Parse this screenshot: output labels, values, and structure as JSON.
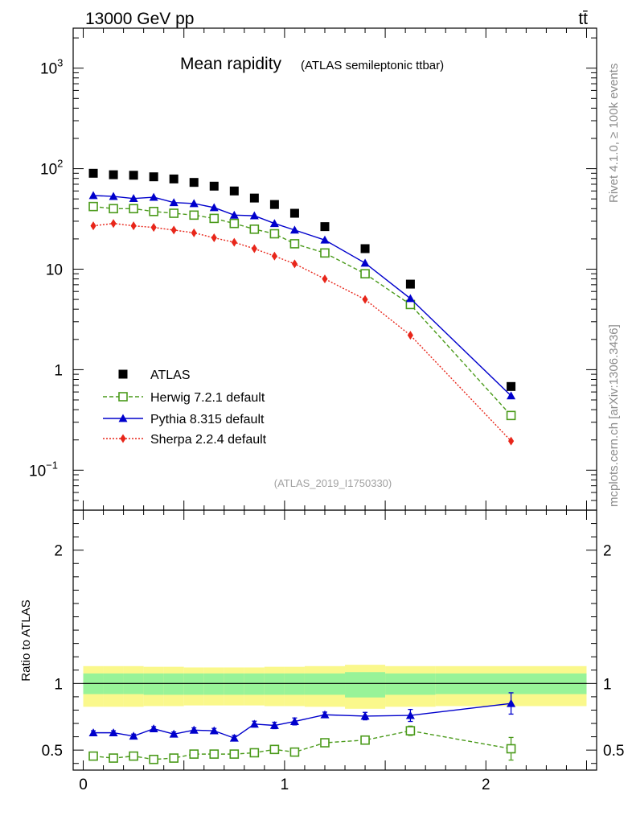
{
  "header": {
    "left": "13000 GeV pp",
    "right": "tt̄",
    "side_top": "Rivet 4.1.0, ≥ 100k events",
    "side_bottom": "mcplots.cern.ch [arXiv:1306.3436]"
  },
  "chart_data": [
    {
      "type": "scatter",
      "panel": "main",
      "title": "Mean rapidity",
      "subtitle": "(ATLAS semileptonic ttbar)",
      "watermark": "(ATLAS_2019_I1750330)",
      "yscale": "log",
      "ylim": [
        0.04,
        2500
      ],
      "xlim": [
        -0.05,
        2.55
      ],
      "yticks": [
        {
          "v": 0.1,
          "base": "10",
          "exp": "−1"
        },
        {
          "v": 1,
          "base": "1",
          "exp": ""
        },
        {
          "v": 10,
          "base": "10",
          "exp": ""
        },
        {
          "v": 100,
          "base": "10",
          "exp": "2"
        },
        {
          "v": 1000,
          "base": "10",
          "exp": "3"
        }
      ],
      "x": [
        0.05,
        0.15,
        0.25,
        0.35,
        0.45,
        0.55,
        0.65,
        0.75,
        0.85,
        0.95,
        1.05,
        1.2,
        1.4,
        1.625,
        2.125
      ],
      "series": [
        {
          "name": "ATLAS",
          "label": "ATLAS",
          "color": "#000000",
          "marker": "square",
          "line": "none",
          "values": [
            90,
            87,
            86,
            83,
            79,
            73,
            67,
            60,
            51,
            44,
            36,
            26.5,
            16,
            7.1,
            0.68
          ]
        },
        {
          "name": "Herwig",
          "label": "Herwig 7.2.1 default",
          "color": "#4a9a1a",
          "marker": "open-square",
          "line": "dashed",
          "values": [
            42,
            40,
            40,
            37.5,
            36,
            34.5,
            32,
            28.5,
            25,
            22.5,
            17.9,
            14.5,
            9.0,
            4.45,
            0.35
          ]
        },
        {
          "name": "Pythia",
          "label": "Pythia 8.315 default",
          "color": "#0000cc",
          "marker": "triangle",
          "line": "solid",
          "values": [
            54,
            53,
            50.5,
            52,
            46,
            45,
            41,
            34.5,
            34,
            28.5,
            24.5,
            19.5,
            11.5,
            5.1,
            0.55
          ]
        },
        {
          "name": "Sherpa",
          "label": "Sherpa 2.2.4 default",
          "color": "#e8261a",
          "marker": "diamond",
          "line": "dotted",
          "values": [
            27,
            28.5,
            27,
            26,
            24.5,
            23,
            20.5,
            18.5,
            16,
            13.5,
            11.3,
            8.0,
            5.0,
            2.2,
            0.195
          ]
        }
      ]
    },
    {
      "type": "scatter",
      "panel": "ratio",
      "ylabel": "Ratio to ATLAS",
      "ylim": [
        0.35,
        2.3
      ],
      "xlim": [
        -0.05,
        2.55
      ],
      "yticks": [
        "0.5",
        "1",
        "2"
      ],
      "xticks": [
        "0",
        "1",
        "2"
      ],
      "bins": [
        [
          0,
          0.1
        ],
        [
          0.1,
          0.2
        ],
        [
          0.2,
          0.3
        ],
        [
          0.3,
          0.4
        ],
        [
          0.4,
          0.5
        ],
        [
          0.5,
          0.6
        ],
        [
          0.6,
          0.7
        ],
        [
          0.7,
          0.8
        ],
        [
          0.8,
          0.9
        ],
        [
          0.9,
          1.0
        ],
        [
          1.0,
          1.1
        ],
        [
          1.1,
          1.3
        ],
        [
          1.3,
          1.5
        ],
        [
          1.5,
          1.75
        ],
        [
          1.75,
          2.5
        ]
      ],
      "band_inner": [
        [
          0.92,
          1.075
        ],
        [
          0.92,
          1.075
        ],
        [
          0.92,
          1.075
        ],
        [
          0.915,
          1.075
        ],
        [
          0.915,
          1.075
        ],
        [
          0.915,
          1.075
        ],
        [
          0.915,
          1.075
        ],
        [
          0.915,
          1.075
        ],
        [
          0.915,
          1.075
        ],
        [
          0.915,
          1.075
        ],
        [
          0.915,
          1.075
        ],
        [
          0.915,
          1.075
        ],
        [
          0.895,
          1.085
        ],
        [
          0.915,
          1.075
        ],
        [
          0.92,
          1.075
        ]
      ],
      "band_outer": [
        [
          0.825,
          1.13
        ],
        [
          0.825,
          1.13
        ],
        [
          0.825,
          1.13
        ],
        [
          0.83,
          1.125
        ],
        [
          0.83,
          1.125
        ],
        [
          0.835,
          1.12
        ],
        [
          0.835,
          1.12
        ],
        [
          0.835,
          1.12
        ],
        [
          0.835,
          1.12
        ],
        [
          0.83,
          1.125
        ],
        [
          0.83,
          1.125
        ],
        [
          0.825,
          1.13
        ],
        [
          0.81,
          1.14
        ],
        [
          0.825,
          1.13
        ],
        [
          0.83,
          1.13
        ]
      ],
      "series": [
        {
          "name": "Herwig",
          "color": "#4a9a1a",
          "marker": "open-square",
          "line": "dashed",
          "values": [
            0.455,
            0.44,
            0.455,
            0.43,
            0.44,
            0.47,
            0.47,
            0.47,
            0.48,
            0.505,
            0.485,
            0.555,
            0.575,
            0.645,
            0.51
          ],
          "errors": [
            0.012,
            0.012,
            0.012,
            0.012,
            0.012,
            0.013,
            0.014,
            0.015,
            0.016,
            0.018,
            0.02,
            0.018,
            0.022,
            0.035,
            0.085
          ]
        },
        {
          "name": "Pythia",
          "color": "#0000cc",
          "marker": "triangle",
          "line": "solid",
          "values": [
            0.63,
            0.63,
            0.605,
            0.66,
            0.62,
            0.65,
            0.645,
            0.59,
            0.695,
            0.685,
            0.715,
            0.765,
            0.755,
            0.76,
            0.85
          ],
          "errors": [
            0.015,
            0.015,
            0.015,
            0.016,
            0.016,
            0.017,
            0.018,
            0.02,
            0.022,
            0.024,
            0.026,
            0.02,
            0.028,
            0.045,
            0.08
          ]
        }
      ]
    }
  ]
}
